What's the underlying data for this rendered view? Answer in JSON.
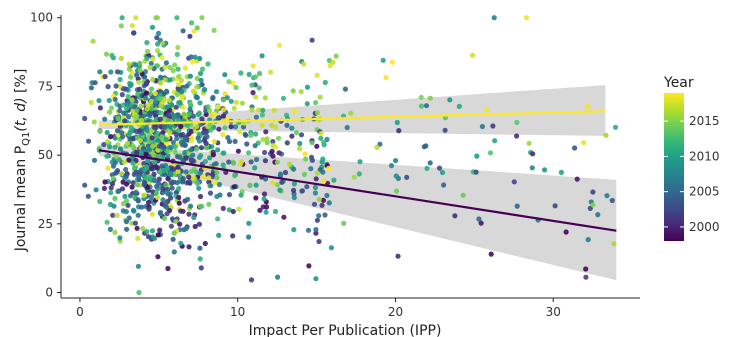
{
  "chart_data": {
    "type": "scatter",
    "xlabel": "Impact Per Publication (IPP)",
    "ylabel_main": "Journal mean P",
    "ylabel_sub": "Q1",
    "ylabel_args": "(t, d)",
    "ylabel_unit": " [%]",
    "xlim": [
      -1.2,
      35.5
    ],
    "ylim": [
      -2,
      101
    ],
    "xticks": [
      0,
      10,
      20,
      30
    ],
    "yticks": [
      0,
      25,
      50,
      75,
      100
    ],
    "grid": false,
    "legend": {
      "title": "Year",
      "type": "colorbar",
      "palette": "viridis",
      "range": [
        1998,
        2019
      ],
      "ticks": [
        2000,
        2005,
        2010,
        2015
      ],
      "position": "right",
      "colors": [
        "#440154",
        "#482878",
        "#3e4a89",
        "#31688e",
        "#26828e",
        "#1f9e89",
        "#35b779",
        "#6ece58",
        "#b5de2b",
        "#fde725"
      ]
    },
    "scatter_sample": {
      "n_points": 1400,
      "x_mode": 4.0,
      "x_range": [
        0.3,
        34
      ],
      "y_range": [
        0,
        100
      ]
    },
    "trend_lines": [
      {
        "year": 1998,
        "color": "#440154",
        "x": [
          1.2,
          34
        ],
        "y": [
          51.8,
          22.5
        ],
        "ci_lower": [
          49.8,
          4.5
        ],
        "ci_upper": [
          53.8,
          41.0
        ]
      },
      {
        "year": 2019,
        "color": "#fde725",
        "x": [
          1.2,
          33.3
        ],
        "y": [
          61.0,
          66.0
        ],
        "ci_lower": [
          59.5,
          57.0
        ],
        "ci_upper": [
          62.5,
          75.5
        ]
      }
    ]
  }
}
